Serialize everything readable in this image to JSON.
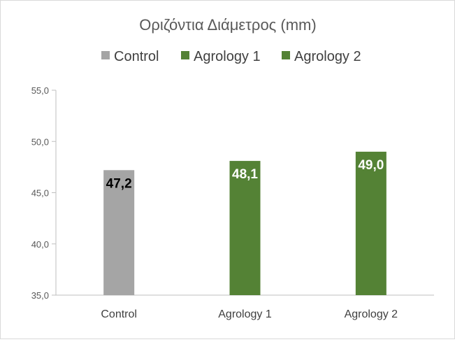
{
  "chart_data": {
    "type": "bar",
    "title": "Οριζόντια Διάμετρος (mm)",
    "xlabel": "",
    "ylabel": "",
    "categories": [
      "Control",
      "Agrology 1",
      "Agrology 2"
    ],
    "values": [
      47.2,
      48.1,
      49.0
    ],
    "data_labels": [
      "47,2",
      "48,1",
      "49,0"
    ],
    "ylim": [
      35.0,
      55.0
    ],
    "yticks": [
      35.0,
      40.0,
      45.0,
      50.0,
      55.0
    ],
    "ytick_labels": [
      "35,0",
      "40,0",
      "45,0",
      "50,0",
      "55,0"
    ],
    "grid": false,
    "legend_position": "top",
    "legend": [
      {
        "name": "Control",
        "color": "#a5a5a5"
      },
      {
        "name": "Agrology 1",
        "color": "#548235"
      },
      {
        "name": "Agrology 2",
        "color": "#548235"
      }
    ],
    "bar_colors": [
      "#a5a5a5",
      "#548235",
      "#548235"
    ],
    "data_label_colors": [
      "#000000",
      "#ffffff",
      "#ffffff"
    ]
  }
}
